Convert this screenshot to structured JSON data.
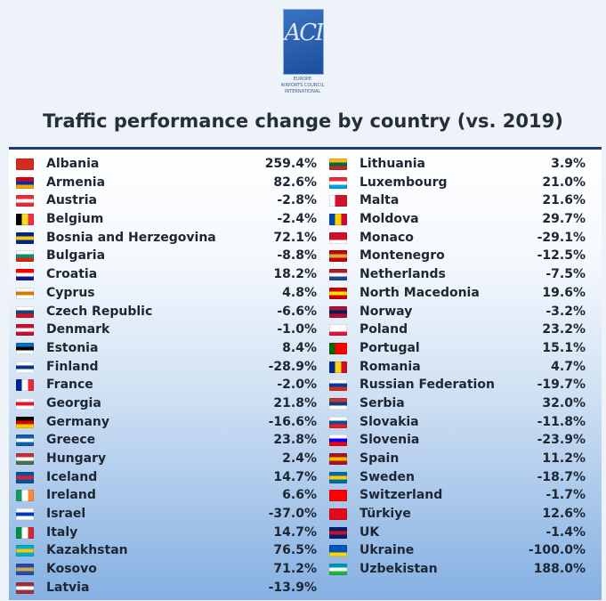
{
  "logo": {
    "mark": "ACI",
    "sub_lines": [
      "EUROPE",
      "AIRPORTS COUNCIL",
      "INTERNATIONAL"
    ]
  },
  "title": "Traffic performance change by country (vs. 2019)",
  "chart_data": {
    "type": "table",
    "title": "Traffic performance change by country (vs. 2019)",
    "left": [
      {
        "country": "Albania",
        "value": "259.4%",
        "flag": [
          "#d52b1e",
          "#d52b1e",
          "#d52b1e"
        ]
      },
      {
        "country": "Armenia",
        "value": "82.6%",
        "flag": [
          "#d90012",
          "#0033a0",
          "#f2a800"
        ]
      },
      {
        "country": "Austria",
        "value": "-2.8%",
        "flag": [
          "#ed2939",
          "#ffffff",
          "#ed2939"
        ]
      },
      {
        "country": "Belgium",
        "value": "-2.4%",
        "flag": [
          "#000000",
          "#fdda24",
          "#ef3340"
        ],
        "vertical": true
      },
      {
        "country": "Bosnia and Herzegovina",
        "value": "72.1%",
        "flag": [
          "#002395",
          "#fecb00",
          "#002395"
        ]
      },
      {
        "country": "Bulgaria",
        "value": "-8.8%",
        "flag": [
          "#ffffff",
          "#00966e",
          "#d62612"
        ]
      },
      {
        "country": "Croatia",
        "value": "18.2%",
        "flag": [
          "#ff0000",
          "#ffffff",
          "#171796"
        ]
      },
      {
        "country": "Cyprus",
        "value": "4.8%",
        "flag": [
          "#ffffff",
          "#d57800",
          "#ffffff"
        ]
      },
      {
        "country": "Czech Republic",
        "value": "-6.6%",
        "flag": [
          "#ffffff",
          "#11457e",
          "#d7141a"
        ]
      },
      {
        "country": "Denmark",
        "value": "-1.0%",
        "flag": [
          "#c8102e",
          "#ffffff",
          "#c8102e"
        ]
      },
      {
        "country": "Estonia",
        "value": "8.4%",
        "flag": [
          "#0072ce",
          "#000000",
          "#ffffff"
        ]
      },
      {
        "country": "Finland",
        "value": "-28.9%",
        "flag": [
          "#ffffff",
          "#003580",
          "#ffffff"
        ]
      },
      {
        "country": "France",
        "value": "-2.0%",
        "flag": [
          "#002395",
          "#ffffff",
          "#ed2939"
        ],
        "vertical": true
      },
      {
        "country": "Georgia",
        "value": "21.8%",
        "flag": [
          "#ffffff",
          "#e8112d",
          "#ffffff"
        ]
      },
      {
        "country": "Germany",
        "value": "-16.6%",
        "flag": [
          "#000000",
          "#dd0000",
          "#ffce00"
        ]
      },
      {
        "country": "Greece",
        "value": "23.8%",
        "flag": [
          "#0d5eaf",
          "#ffffff",
          "#0d5eaf"
        ]
      },
      {
        "country": "Hungary",
        "value": "2.4%",
        "flag": [
          "#ce2939",
          "#ffffff",
          "#477050"
        ]
      },
      {
        "country": "Iceland",
        "value": "14.7%",
        "flag": [
          "#02529c",
          "#dc1e35",
          "#02529c"
        ]
      },
      {
        "country": "Ireland",
        "value": "6.6%",
        "flag": [
          "#169b62",
          "#ffffff",
          "#ff883e"
        ],
        "vertical": true
      },
      {
        "country": "Israel",
        "value": "-37.0%",
        "flag": [
          "#ffffff",
          "#0038b8",
          "#ffffff"
        ]
      },
      {
        "country": "Italy",
        "value": "14.7%",
        "flag": [
          "#009246",
          "#ffffff",
          "#ce2b37"
        ],
        "vertical": true
      },
      {
        "country": "Kazakhstan",
        "value": "76.5%",
        "flag": [
          "#00afca",
          "#fec50c",
          "#00afca"
        ]
      },
      {
        "country": "Kosovo",
        "value": "71.2%",
        "flag": [
          "#244aa5",
          "#d0a650",
          "#244aa5"
        ]
      },
      {
        "country": "Latvia",
        "value": "-13.9%",
        "flag": [
          "#9e3039",
          "#ffffff",
          "#9e3039"
        ]
      }
    ],
    "right": [
      {
        "country": "Lithuania",
        "value": "3.9%",
        "flag": [
          "#fdb913",
          "#006a44",
          "#c1272d"
        ]
      },
      {
        "country": "Luxembourg",
        "value": "21.0%",
        "flag": [
          "#ed2939",
          "#ffffff",
          "#00a1de"
        ]
      },
      {
        "country": "Malta",
        "value": "21.6%",
        "flag": [
          "#ffffff",
          "#cf142b",
          "#cf142b"
        ],
        "vertical": true
      },
      {
        "country": "Moldova",
        "value": "29.7%",
        "flag": [
          "#0046ae",
          "#ffd200",
          "#cc092f"
        ],
        "vertical": true
      },
      {
        "country": "Monaco",
        "value": "-29.1%",
        "flag": [
          "#ce1126",
          "#ce1126",
          "#ffffff"
        ]
      },
      {
        "country": "Montenegro",
        "value": "-12.5%",
        "flag": [
          "#c40308",
          "#d4af37",
          "#c40308"
        ]
      },
      {
        "country": "Netherlands",
        "value": "-7.5%",
        "flag": [
          "#ae1c28",
          "#ffffff",
          "#21468b"
        ]
      },
      {
        "country": "North Macedonia",
        "value": "19.6%",
        "flag": [
          "#d20000",
          "#ffe600",
          "#d20000"
        ]
      },
      {
        "country": "Norway",
        "value": "-3.2%",
        "flag": [
          "#ba0c2f",
          "#00205b",
          "#ba0c2f"
        ]
      },
      {
        "country": "Poland",
        "value": "23.2%",
        "flag": [
          "#ffffff",
          "#ffffff",
          "#dc143c"
        ]
      },
      {
        "country": "Portugal",
        "value": "15.1%",
        "flag": [
          "#006600",
          "#ff0000",
          "#ff0000"
        ],
        "vertical": true
      },
      {
        "country": "Romania",
        "value": "4.7%",
        "flag": [
          "#002b7f",
          "#fcd116",
          "#ce1126"
        ],
        "vertical": true
      },
      {
        "country": "Russian Federation",
        "value": "-19.7%",
        "flag": [
          "#ffffff",
          "#0039a6",
          "#d52b1e"
        ]
      },
      {
        "country": "Serbia",
        "value": "32.0%",
        "flag": [
          "#c6363c",
          "#0c4076",
          "#ffffff"
        ]
      },
      {
        "country": "Slovakia",
        "value": "-11.8%",
        "flag": [
          "#ffffff",
          "#0b4ea2",
          "#ee1c25"
        ]
      },
      {
        "country": "Slovenia",
        "value": "-23.9%",
        "flag": [
          "#ffffff",
          "#0000ff",
          "#ff0000"
        ]
      },
      {
        "country": "Spain",
        "value": "11.2%",
        "flag": [
          "#aa151b",
          "#f1bf00",
          "#aa151b"
        ]
      },
      {
        "country": "Sweden",
        "value": "-18.7%",
        "flag": [
          "#006aa7",
          "#fecc00",
          "#006aa7"
        ]
      },
      {
        "country": "Switzerland",
        "value": "-1.7%",
        "flag": [
          "#ff0000",
          "#ff0000",
          "#ff0000"
        ]
      },
      {
        "country": "Türkiye",
        "value": "12.6%",
        "flag": [
          "#e30a17",
          "#e30a17",
          "#e30a17"
        ]
      },
      {
        "country": "UK",
        "value": "-1.4%",
        "flag": [
          "#012169",
          "#c8102e",
          "#012169"
        ]
      },
      {
        "country": "Ukraine",
        "value": "-100.0%",
        "flag": [
          "#0057b7",
          "#0057b7",
          "#ffd700"
        ]
      },
      {
        "country": "Uzbekistan",
        "value": "188.0%",
        "flag": [
          "#0099b5",
          "#ffffff",
          "#1eb53a"
        ]
      }
    ]
  }
}
